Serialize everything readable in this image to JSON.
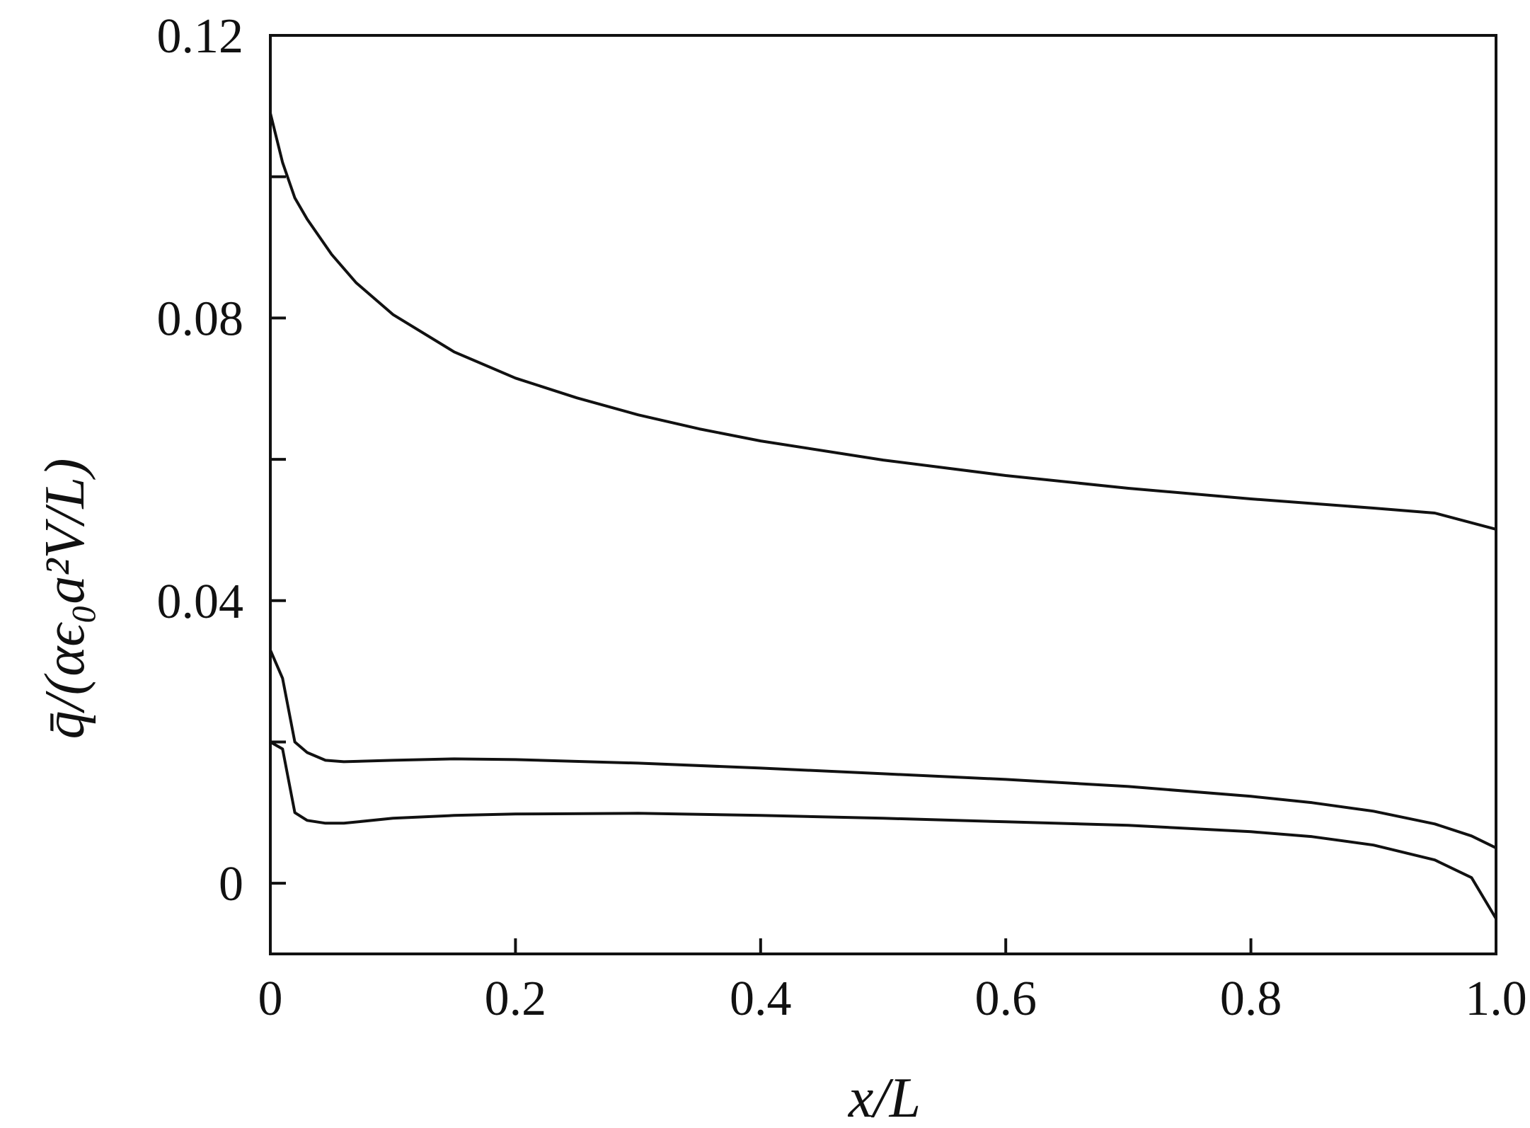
{
  "chart_data": {
    "type": "line",
    "title": "",
    "xlabel": "x/L",
    "ylabel": "q̄/(αϵ₀a²V/L)",
    "xlim": [
      0,
      1.0
    ],
    "ylim": [
      -0.01,
      0.12
    ],
    "grid": false,
    "x_ticks": [
      {
        "value": 0,
        "label": "0"
      },
      {
        "value": 0.2,
        "label": "0.2"
      },
      {
        "value": 0.4,
        "label": "0.4"
      },
      {
        "value": 0.6,
        "label": "0.6"
      },
      {
        "value": 0.8,
        "label": "0.8"
      },
      {
        "value": 1.0,
        "label": "1.0"
      }
    ],
    "y_ticks": [
      {
        "value": 0,
        "label": "0"
      },
      {
        "value": 0.02,
        "label": ""
      },
      {
        "value": 0.04,
        "label": "0.04"
      },
      {
        "value": 0.06,
        "label": ""
      },
      {
        "value": 0.08,
        "label": "0.08"
      },
      {
        "value": 0.1,
        "label": ""
      },
      {
        "value": 0.12,
        "label": "0.12"
      }
    ],
    "series": [
      {
        "x": [
          0,
          0.01,
          0.02,
          0.03,
          0.05,
          0.07,
          0.1,
          0.15,
          0.2,
          0.25,
          0.3,
          0.35,
          0.4,
          0.5,
          0.6,
          0.7,
          0.8,
          0.9,
          0.95,
          1.0
        ],
        "y": [
          0.109,
          0.102,
          0.097,
          0.094,
          0.089,
          0.085,
          0.0805,
          0.0752,
          0.0715,
          0.0687,
          0.0663,
          0.0643,
          0.0626,
          0.0599,
          0.0577,
          0.0559,
          0.0544,
          0.0531,
          0.0524,
          0.0501
        ]
      },
      {
        "x": [
          0,
          0.01,
          0.02,
          0.03,
          0.045,
          0.06,
          0.1,
          0.15,
          0.2,
          0.3,
          0.4,
          0.5,
          0.6,
          0.7,
          0.8,
          0.85,
          0.9,
          0.95,
          0.98,
          1.0
        ],
        "y": [
          0.033,
          0.029,
          0.02,
          0.0185,
          0.0174,
          0.0172,
          0.0174,
          0.0176,
          0.0175,
          0.017,
          0.0163,
          0.0155,
          0.0147,
          0.0137,
          0.0123,
          0.0114,
          0.0102,
          0.0084,
          0.0067,
          0.005
        ]
      },
      {
        "x": [
          0,
          0.01,
          0.02,
          0.03,
          0.045,
          0.06,
          0.1,
          0.15,
          0.2,
          0.3,
          0.4,
          0.5,
          0.6,
          0.7,
          0.8,
          0.85,
          0.9,
          0.95,
          0.98,
          1.0
        ],
        "y": [
          0.02,
          0.019,
          0.01,
          0.0089,
          0.0085,
          0.0085,
          0.0092,
          0.0096,
          0.0098,
          0.0099,
          0.0096,
          0.0092,
          0.0087,
          0.0082,
          0.0073,
          0.0066,
          0.0054,
          0.0033,
          0.0008,
          -0.005
        ]
      }
    ]
  }
}
